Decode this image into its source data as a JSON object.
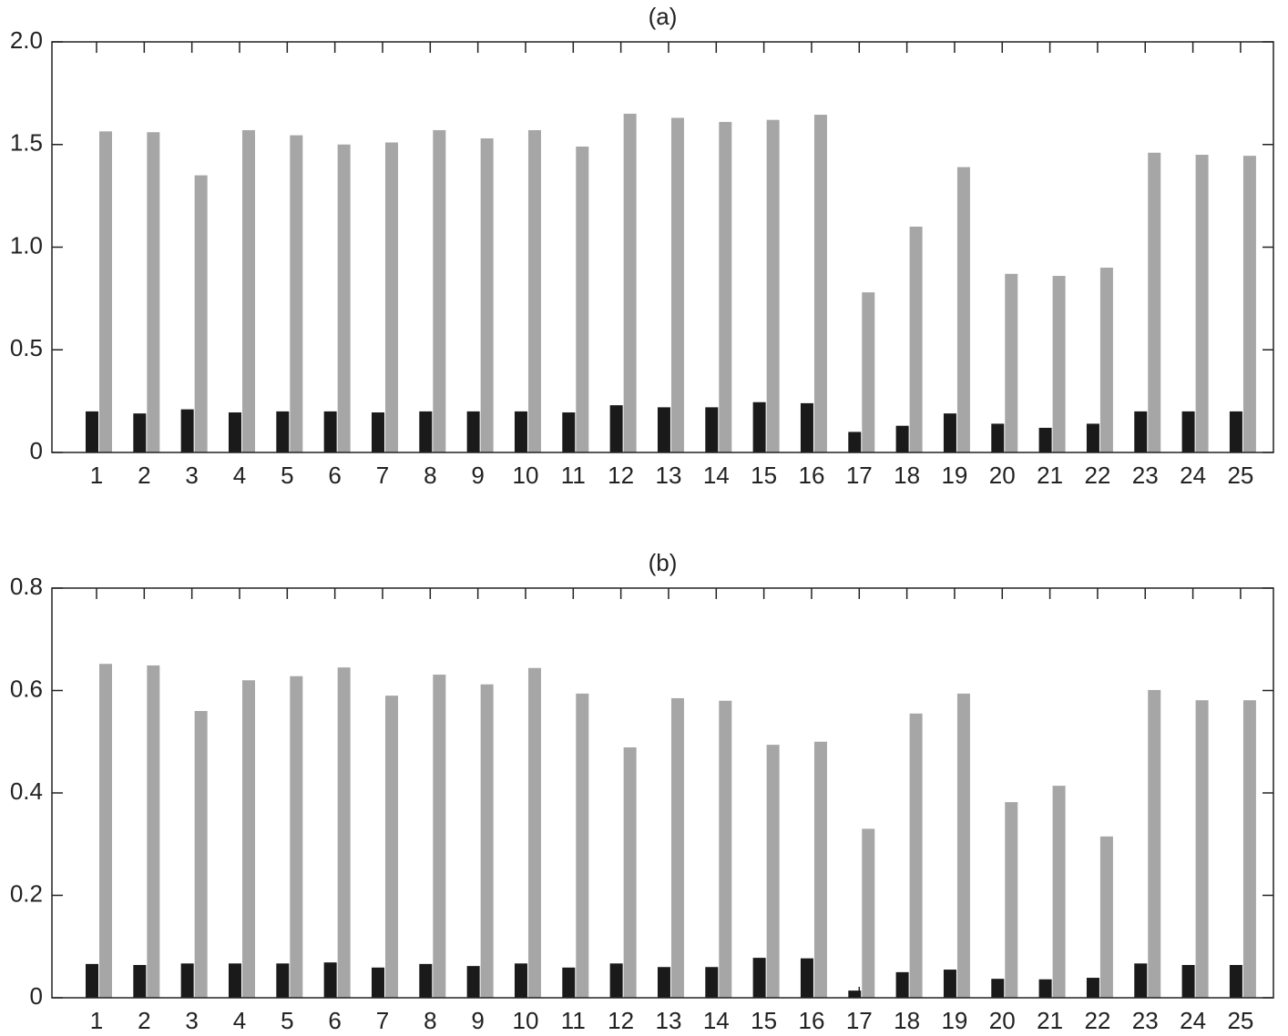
{
  "chart_data": [
    {
      "type": "bar",
      "title": "(a)",
      "categories": [
        "1",
        "2",
        "3",
        "4",
        "5",
        "6",
        "7",
        "8",
        "9",
        "10",
        "11",
        "12",
        "13",
        "14",
        "15",
        "16",
        "17",
        "18",
        "19",
        "20",
        "21",
        "22",
        "23",
        "24",
        "25"
      ],
      "series": [
        {
          "color": "#1a1a1a",
          "values": [
            0.2,
            0.19,
            0.21,
            0.195,
            0.2,
            0.2,
            0.195,
            0.2,
            0.2,
            0.2,
            0.195,
            0.23,
            0.22,
            0.22,
            0.245,
            0.24,
            0.1,
            0.13,
            0.19,
            0.14,
            0.12,
            0.14,
            0.2,
            0.2,
            0.2
          ]
        },
        {
          "color": "#a6a6a6",
          "values": [
            1.564,
            1.56,
            1.35,
            1.57,
            1.545,
            1.5,
            1.51,
            1.57,
            1.53,
            1.57,
            1.49,
            1.65,
            1.63,
            1.61,
            1.62,
            1.645,
            0.78,
            1.1,
            1.39,
            0.87,
            0.86,
            0.9,
            1.46,
            1.45,
            1.445
          ]
        }
      ],
      "ylim": [
        0,
        2
      ],
      "yticks": [
        0,
        0.5,
        {
          "value": 1,
          "label": "1.0"
        },
        1.5,
        {
          "value": 2,
          "label": "2.0"
        }
      ]
    },
    {
      "type": "bar",
      "title": "(b)",
      "categories": [
        "1",
        "2",
        "3",
        "4",
        "5",
        "6",
        "7",
        "8",
        "9",
        "10",
        "11",
        "12",
        "13",
        "14",
        "15",
        "16",
        "17",
        "18",
        "19",
        "20",
        "21",
        "22",
        "23",
        "24",
        "25"
      ],
      "series": [
        {
          "color": "#1a1a1a",
          "values": [
            0.066,
            0.064,
            0.067,
            0.067,
            0.067,
            0.069,
            0.059,
            0.066,
            0.062,
            0.067,
            0.059,
            0.067,
            0.06,
            0.06,
            0.078,
            0.077,
            0.014,
            0.05,
            0.055,
            0.037,
            0.036,
            0.039,
            0.067,
            0.064,
            0.064
          ]
        },
        {
          "color": "#a6a6a6",
          "values": [
            0.652,
            0.649,
            0.56,
            0.62,
            0.628,
            0.645,
            0.59,
            0.631,
            0.612,
            0.644,
            0.594,
            0.489,
            0.585,
            0.58,
            0.494,
            0.5,
            0.33,
            0.555,
            0.594,
            0.382,
            0.414,
            0.315,
            0.601,
            0.581,
            0.581
          ]
        }
      ],
      "ylim": [
        0,
        0.8
      ],
      "yticks": [
        0,
        0.2,
        0.4,
        0.6,
        0.8
      ]
    }
  ]
}
